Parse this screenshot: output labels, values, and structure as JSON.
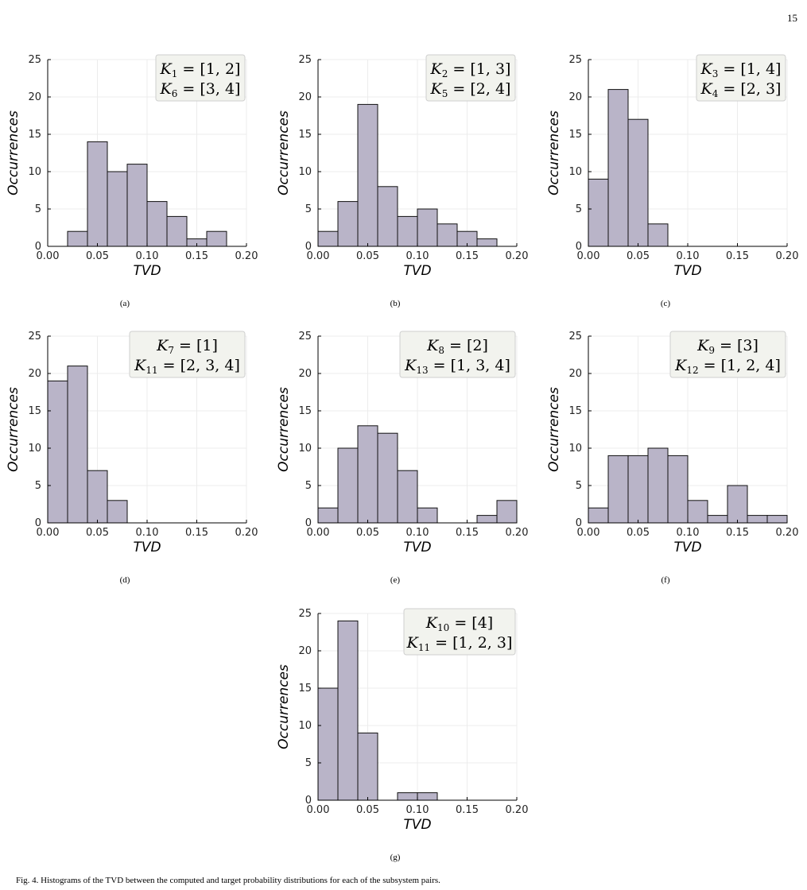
{
  "page_number": "15",
  "figure_caption": "Fig. 4. Histograms of the TVD between the computed and target probability distributions for each of the subsystem pairs.",
  "style": {
    "bar_fill": "#b9b4c8",
    "bar_stroke": "#111111",
    "grid": "#ececec",
    "legend_bg": "#f2f3ee"
  },
  "chart_data": [
    {
      "type": "bar",
      "sublabel": "(a)",
      "xlabel": "TVD",
      "ylabel": "Occurrences",
      "xlim": [
        0.0,
        0.2
      ],
      "ylim": [
        0,
        25
      ],
      "bin_width": 0.02,
      "grid": true,
      "x_ticks": [
        "0.00",
        "0.05",
        "0.10",
        "0.15",
        "0.20"
      ],
      "y_ticks": [
        "0",
        "5",
        "10",
        "15",
        "20",
        "25"
      ],
      "legend_position": "top-right",
      "legend": [
        {
          "sym": "K",
          "sub": "1",
          "val": " = [1, 2]"
        },
        {
          "sym": "K",
          "sub": "6",
          "val": " = [3, 4]"
        }
      ],
      "bin_starts": [
        0.02,
        0.04,
        0.06,
        0.08,
        0.1,
        0.12,
        0.14,
        0.16
      ],
      "values": [
        2,
        14,
        10,
        11,
        6,
        4,
        1,
        2
      ]
    },
    {
      "type": "bar",
      "sublabel": "(b)",
      "xlabel": "TVD",
      "ylabel": "Occurrences",
      "xlim": [
        0.0,
        0.2
      ],
      "ylim": [
        0,
        25
      ],
      "bin_width": 0.02,
      "grid": true,
      "x_ticks": [
        "0.00",
        "0.05",
        "0.10",
        "0.15",
        "0.20"
      ],
      "y_ticks": [
        "0",
        "5",
        "10",
        "15",
        "20",
        "25"
      ],
      "legend_position": "top-right",
      "legend": [
        {
          "sym": "K",
          "sub": "2",
          "val": " = [1, 3]"
        },
        {
          "sym": "K",
          "sub": "5",
          "val": " = [2, 4]"
        }
      ],
      "bin_starts": [
        0.0,
        0.02,
        0.04,
        0.06,
        0.08,
        0.1,
        0.12,
        0.14,
        0.16
      ],
      "values": [
        2,
        6,
        19,
        8,
        4,
        5,
        3,
        2,
        1
      ]
    },
    {
      "type": "bar",
      "sublabel": "(c)",
      "xlabel": "TVD",
      "ylabel": "Occurrences",
      "xlim": [
        0.0,
        0.2
      ],
      "ylim": [
        0,
        25
      ],
      "bin_width": 0.02,
      "grid": true,
      "x_ticks": [
        "0.00",
        "0.05",
        "0.10",
        "0.15",
        "0.20"
      ],
      "y_ticks": [
        "0",
        "5",
        "10",
        "15",
        "20",
        "25"
      ],
      "legend_position": "top-right",
      "legend": [
        {
          "sym": "K",
          "sub": "3",
          "val": " = [1, 4]"
        },
        {
          "sym": "K",
          "sub": "4",
          "val": " = [2, 3]"
        }
      ],
      "bin_starts": [
        0.0,
        0.02,
        0.04,
        0.06
      ],
      "values": [
        9,
        21,
        17,
        3
      ]
    },
    {
      "type": "bar",
      "sublabel": "(d)",
      "xlabel": "TVD",
      "ylabel": "Occurrences",
      "xlim": [
        0.0,
        0.2
      ],
      "ylim": [
        0,
        25
      ],
      "bin_width": 0.02,
      "grid": true,
      "x_ticks": [
        "0.00",
        "0.05",
        "0.10",
        "0.15",
        "0.20"
      ],
      "y_ticks": [
        "0",
        "5",
        "10",
        "15",
        "20",
        "25"
      ],
      "legend_position": "top-right",
      "legend": [
        {
          "sym": "K",
          "sub": "7",
          "val": " = [1]"
        },
        {
          "sym": "K",
          "sub": "11",
          "val": " = [2, 3, 4]"
        }
      ],
      "bin_starts": [
        0.0,
        0.02,
        0.04,
        0.06
      ],
      "values": [
        19,
        21,
        7,
        3
      ]
    },
    {
      "type": "bar",
      "sublabel": "(e)",
      "xlabel": "TVD",
      "ylabel": "Occurrences",
      "xlim": [
        0.0,
        0.2
      ],
      "ylim": [
        0,
        25
      ],
      "bin_width": 0.02,
      "grid": true,
      "x_ticks": [
        "0.00",
        "0.05",
        "0.10",
        "0.15",
        "0.20"
      ],
      "y_ticks": [
        "0",
        "5",
        "10",
        "15",
        "20",
        "25"
      ],
      "legend_position": "top-right",
      "legend": [
        {
          "sym": "K",
          "sub": "8",
          "val": " = [2]"
        },
        {
          "sym": "K",
          "sub": "13",
          "val": " = [1, 3, 4]"
        }
      ],
      "bin_starts": [
        0.0,
        0.02,
        0.04,
        0.06,
        0.08,
        0.1,
        0.16,
        0.18
      ],
      "values": [
        2,
        10,
        13,
        12,
        7,
        2,
        1,
        3
      ]
    },
    {
      "type": "bar",
      "sublabel": "(f)",
      "xlabel": "TVD",
      "ylabel": "Occurrences",
      "xlim": [
        0.0,
        0.2
      ],
      "ylim": [
        0,
        25
      ],
      "bin_width": 0.02,
      "grid": true,
      "x_ticks": [
        "0.00",
        "0.05",
        "0.10",
        "0.15",
        "0.20"
      ],
      "y_ticks": [
        "0",
        "5",
        "10",
        "15",
        "20",
        "25"
      ],
      "legend_position": "top-right",
      "legend": [
        {
          "sym": "K",
          "sub": "9",
          "val": " = [3]"
        },
        {
          "sym": "K",
          "sub": "12",
          "val": " = [1, 2, 4]"
        }
      ],
      "bin_starts": [
        0.0,
        0.02,
        0.04,
        0.06,
        0.08,
        0.1,
        0.12,
        0.14,
        0.16,
        0.18
      ],
      "values": [
        2,
        9,
        9,
        10,
        9,
        3,
        1,
        5,
        1,
        1
      ]
    },
    {
      "type": "bar",
      "sublabel": "(g)",
      "xlabel": "TVD",
      "ylabel": "Occurrences",
      "xlim": [
        0.0,
        0.2
      ],
      "ylim": [
        0,
        25
      ],
      "bin_width": 0.02,
      "grid": true,
      "x_ticks": [
        "0.00",
        "0.05",
        "0.10",
        "0.15",
        "0.20"
      ],
      "y_ticks": [
        "0",
        "5",
        "10",
        "15",
        "20",
        "25"
      ],
      "legend_position": "top-right",
      "legend": [
        {
          "sym": "K",
          "sub": "10",
          "val": " = [4]"
        },
        {
          "sym": "K",
          "sub": "11",
          "val": " = [1, 2, 3]"
        }
      ],
      "bin_starts": [
        0.0,
        0.02,
        0.04,
        0.08,
        0.1
      ],
      "values": [
        15,
        24,
        9,
        1,
        1
      ]
    }
  ]
}
